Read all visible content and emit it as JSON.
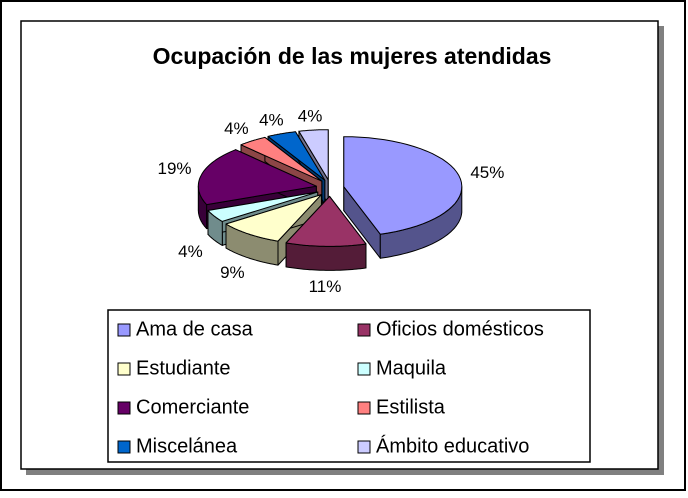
{
  "chart_data": {
    "type": "pie",
    "title": "Ocupación de las mujeres atendidas",
    "categories": [
      "Ama de casa",
      "Oficios domésticos",
      "Estudiante",
      "Maquila",
      "Comerciante",
      "Estilista",
      "Miscelánea",
      "Ámbito educativo"
    ],
    "values": [
      45,
      11,
      9,
      4,
      19,
      4,
      4,
      4
    ],
    "value_labels": [
      "45%",
      "11%",
      "9%",
      "4%",
      "19%",
      "4%",
      "4%",
      "4%"
    ],
    "colors": [
      "#9999ff",
      "#993366",
      "#ffffcc",
      "#ccffff",
      "#660066",
      "#ff8080",
      "#0066cc",
      "#ccccff"
    ],
    "legend": "bottom"
  }
}
